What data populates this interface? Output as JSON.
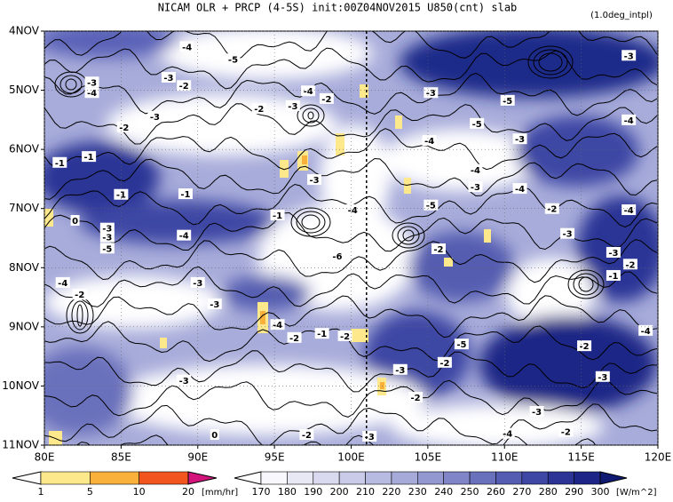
{
  "chart_data": {
    "type": "hovmoller",
    "title": "NICAM  OLR + PRCP (4-5S) init:00Z04NOV2015  U850(cnt) slab",
    "subtitle": "(1.0deg_intpl)",
    "xlim": [
      80,
      120
    ],
    "xticks": [
      {
        "value": 80,
        "label": "80E"
      },
      {
        "value": 85,
        "label": "85E"
      },
      {
        "value": 90,
        "label": "90E"
      },
      {
        "value": 95,
        "label": "95E"
      },
      {
        "value": 100,
        "label": "100E"
      },
      {
        "value": 105,
        "label": "105E"
      },
      {
        "value": 110,
        "label": "110E"
      },
      {
        "value": 115,
        "label": "115E"
      },
      {
        "value": 120,
        "label": "120E"
      }
    ],
    "ylim": [
      4,
      11
    ],
    "yticks": [
      {
        "value": 4,
        "label": "4NOV"
      },
      {
        "value": 5,
        "label": "5NOV"
      },
      {
        "value": 6,
        "label": "6NOV"
      },
      {
        "value": 7,
        "label": "7NOV"
      },
      {
        "value": 8,
        "label": "8NOV"
      },
      {
        "value": 9,
        "label": "9NOV"
      },
      {
        "value": 10,
        "label": "10NOV"
      },
      {
        "value": 11,
        "label": "11NOV"
      }
    ],
    "grid": true,
    "vline": 101,
    "precip_colorbar": {
      "unit": "[mm/hr]",
      "levels": [
        1,
        5,
        10,
        20
      ],
      "colors": [
        "#ffffff",
        "#fde98c",
        "#f9b13c",
        "#f2561e",
        "#d2147c"
      ]
    },
    "olr_colorbar": {
      "unit": "[W/m^2]",
      "levels": [
        170,
        180,
        190,
        200,
        210,
        220,
        230,
        240,
        250,
        260,
        270,
        280,
        290,
        300
      ],
      "colors": [
        "#ffffff",
        "#f7f7fc",
        "#e8e8f5",
        "#d9daef",
        "#c9cbe8",
        "#b8bbe1",
        "#a6aad9",
        "#9398d0",
        "#7f85c7",
        "#6a71bc",
        "#545db1",
        "#3e47a4",
        "#2c3596",
        "#1d2686",
        "#101a73"
      ]
    },
    "contour_labels": [
      {
        "text": "-4",
        "x": 89.3,
        "y": 4.26
      },
      {
        "text": "-5",
        "x": 92.3,
        "y": 4.47
      },
      {
        "text": "-3",
        "x": 83.1,
        "y": 4.86
      },
      {
        "text": "-4",
        "x": 83.1,
        "y": 5.04
      },
      {
        "text": "-3",
        "x": 88.1,
        "y": 4.78
      },
      {
        "text": "-2",
        "x": 89.1,
        "y": 4.92
      },
      {
        "text": "-4",
        "x": 97.2,
        "y": 5.01
      },
      {
        "text": "-2",
        "x": 98.4,
        "y": 5.14
      },
      {
        "text": "-2",
        "x": 94.0,
        "y": 5.31
      },
      {
        "text": "-3",
        "x": 96.2,
        "y": 5.26
      },
      {
        "text": "-3",
        "x": 87.2,
        "y": 5.44
      },
      {
        "text": "-2",
        "x": 85.2,
        "y": 5.62
      },
      {
        "text": "-3",
        "x": 105.2,
        "y": 5.04
      },
      {
        "text": "-5",
        "x": 110.2,
        "y": 5.17
      },
      {
        "text": "-5",
        "x": 108.2,
        "y": 5.56
      },
      {
        "text": "-3",
        "x": 118.1,
        "y": 4.41
      },
      {
        "text": "-4",
        "x": 118.1,
        "y": 5.5
      },
      {
        "text": "-3",
        "x": 111.0,
        "y": 5.82
      },
      {
        "text": "-4",
        "x": 105.1,
        "y": 5.85
      },
      {
        "text": "-1",
        "x": 81.0,
        "y": 6.22
      },
      {
        "text": "-1",
        "x": 82.9,
        "y": 6.12
      },
      {
        "text": "-3",
        "x": 97.6,
        "y": 6.51
      },
      {
        "text": "-4",
        "x": 108.1,
        "y": 6.34
      },
      {
        "text": "-3",
        "x": 108.1,
        "y": 6.63
      },
      {
        "text": "-4",
        "x": 111.0,
        "y": 6.66
      },
      {
        "text": "-1",
        "x": 85.0,
        "y": 6.76
      },
      {
        "text": "-1",
        "x": 89.2,
        "y": 6.75
      },
      {
        "text": "-5",
        "x": 105.2,
        "y": 6.94
      },
      {
        "text": "-2",
        "x": 113.1,
        "y": 7.0
      },
      {
        "text": "-4",
        "x": 118.1,
        "y": 7.02
      },
      {
        "text": "-4",
        "x": 100.1,
        "y": 7.02
      },
      {
        "text": "-1",
        "x": 95.2,
        "y": 7.11
      },
      {
        "text": "0",
        "x": 82.0,
        "y": 7.2
      },
      {
        "text": "-3",
        "x": 84.1,
        "y": 7.33
      },
      {
        "text": "-3",
        "x": 84.1,
        "y": 7.48
      },
      {
        "text": "-5",
        "x": 84.1,
        "y": 7.67
      },
      {
        "text": "-4",
        "x": 89.1,
        "y": 7.45
      },
      {
        "text": "-3",
        "x": 114.1,
        "y": 7.42
      },
      {
        "text": "-2",
        "x": 105.7,
        "y": 7.68
      },
      {
        "text": "-6",
        "x": 99.1,
        "y": 7.8
      },
      {
        "text": "-3",
        "x": 117.1,
        "y": 7.74
      },
      {
        "text": "-2",
        "x": 118.2,
        "y": 7.94
      },
      {
        "text": "-1",
        "x": 117.1,
        "y": 8.13
      },
      {
        "text": "-4",
        "x": 81.2,
        "y": 8.25
      },
      {
        "text": "-2",
        "x": 82.3,
        "y": 8.45
      },
      {
        "text": "-3",
        "x": 90.0,
        "y": 8.25
      },
      {
        "text": "-3",
        "x": 91.1,
        "y": 8.61
      },
      {
        "text": "-4",
        "x": 95.2,
        "y": 8.96
      },
      {
        "text": "-2",
        "x": 96.3,
        "y": 9.18
      },
      {
        "text": "-1",
        "x": 98.1,
        "y": 9.11
      },
      {
        "text": "-2",
        "x": 99.6,
        "y": 9.15
      },
      {
        "text": "-5",
        "x": 107.2,
        "y": 9.29
      },
      {
        "text": "-2",
        "x": 115.2,
        "y": 9.32
      },
      {
        "text": "-4",
        "x": 119.2,
        "y": 9.06
      },
      {
        "text": "-3",
        "x": 103.2,
        "y": 9.72
      },
      {
        "text": "-2",
        "x": 106.1,
        "y": 9.6
      },
      {
        "text": "-3",
        "x": 116.4,
        "y": 9.84
      },
      {
        "text": "-3",
        "x": 89.1,
        "y": 9.9
      },
      {
        "text": "-2",
        "x": 104.2,
        "y": 10.19
      },
      {
        "text": "-3",
        "x": 112.1,
        "y": 10.43
      },
      {
        "text": "0",
        "x": 91.1,
        "y": 10.82
      },
      {
        "text": "-2",
        "x": 97.1,
        "y": 10.82
      },
      {
        "text": "-3",
        "x": 101.2,
        "y": 10.85
      },
      {
        "text": "-4",
        "x": 110.2,
        "y": 10.8
      },
      {
        "text": "-2",
        "x": 114.0,
        "y": 10.77
      }
    ]
  }
}
